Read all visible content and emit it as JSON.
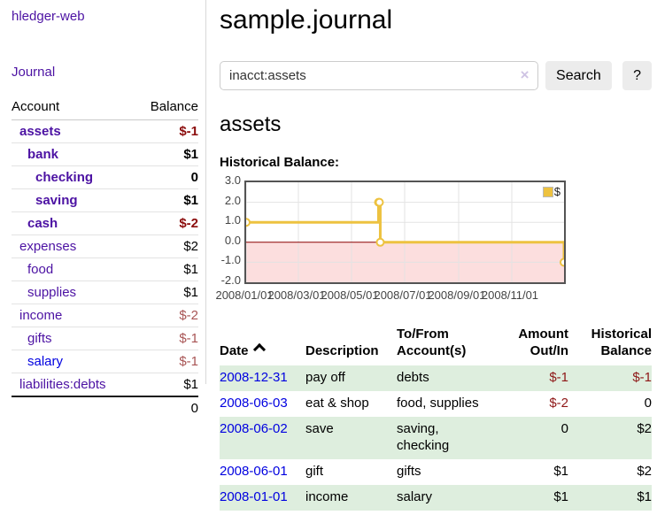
{
  "sidebar": {
    "brand": "hledger-web",
    "nav": [
      {
        "label": "Journal"
      }
    ],
    "accounts_table": {
      "headers": [
        "Account",
        "Balance"
      ],
      "rows": [
        {
          "name": "assets",
          "balance": "$-1",
          "indent": 1,
          "bold": true,
          "link_color": "purple",
          "balance_class": "neg-strong"
        },
        {
          "name": "bank",
          "balance": "$1",
          "indent": 2,
          "bold": true,
          "link_color": "purple",
          "balance_class": ""
        },
        {
          "name": "checking",
          "balance": "0",
          "indent": 3,
          "bold": true,
          "link_color": "purple",
          "balance_class": ""
        },
        {
          "name": "saving",
          "balance": "$1",
          "indent": 3,
          "bold": true,
          "link_color": "purple",
          "balance_class": ""
        },
        {
          "name": "cash",
          "balance": "$-2",
          "indent": 2,
          "bold": true,
          "link_color": "purple",
          "balance_class": "neg-strong"
        },
        {
          "name": "expenses",
          "balance": "$2",
          "indent": 1,
          "bold": false,
          "link_color": "purple",
          "balance_class": ""
        },
        {
          "name": "food",
          "balance": "$1",
          "indent": 2,
          "bold": false,
          "link_color": "purple",
          "balance_class": ""
        },
        {
          "name": "supplies",
          "balance": "$1",
          "indent": 2,
          "bold": false,
          "link_color": "purple",
          "balance_class": ""
        },
        {
          "name": "income",
          "balance": "$-2",
          "indent": 1,
          "bold": false,
          "link_color": "purple",
          "balance_class": "neg-soft"
        },
        {
          "name": "gifts",
          "balance": "$-1",
          "indent": 2,
          "bold": false,
          "link_color": "purple",
          "balance_class": "neg-soft"
        },
        {
          "name": "salary",
          "balance": "$-1",
          "indent": 2,
          "bold": false,
          "link_color": "blue",
          "balance_class": "neg-soft"
        },
        {
          "name": "liabilities:debts",
          "balance": "$1",
          "indent": 1,
          "bold": false,
          "link_color": "purple",
          "balance_class": ""
        }
      ],
      "total": "0"
    }
  },
  "header": {
    "title": "sample.journal"
  },
  "search": {
    "value": "inacct:assets",
    "clear_icon": "×",
    "button_label": "Search",
    "help_label": "?"
  },
  "account_page": {
    "title": "assets",
    "chart_label": "Historical Balance:"
  },
  "chart_data": {
    "type": "line",
    "step": true,
    "title": "Historical Balance",
    "series": [
      {
        "name": "$",
        "color": "#edc240",
        "points": [
          [
            "2008-01-01",
            1
          ],
          [
            "2008-06-01",
            2
          ],
          [
            "2008-06-02",
            2
          ],
          [
            "2008-06-03",
            0
          ],
          [
            "2008-12-31",
            -1
          ]
        ]
      }
    ],
    "x_range": [
      "2008-01-01",
      "2008-12-31"
    ],
    "ylim": [
      -2,
      3
    ],
    "y_ticks": [
      {
        "value": 3,
        "label": "3.0"
      },
      {
        "value": 2,
        "label": "2.0"
      },
      {
        "value": 1,
        "label": "1.0"
      },
      {
        "value": 0,
        "label": "0.0"
      },
      {
        "value": -1,
        "label": "-1.0"
      },
      {
        "value": -2,
        "label": "-2.0"
      }
    ],
    "x_ticks": [
      {
        "date": "2008-01-01",
        "label": "2008/01/01"
      },
      {
        "date": "2008-03-01",
        "label": "2008/03/01"
      },
      {
        "date": "2008-05-01",
        "label": "2008/05/01"
      },
      {
        "date": "2008-07-01",
        "label": "2008/07/01"
      },
      {
        "date": "2008-09-01",
        "label": "2008/09/01"
      },
      {
        "date": "2008-11-01",
        "label": "2008/11/01"
      }
    ],
    "grid": true,
    "legend": {
      "label": "$",
      "position": "top-right"
    },
    "colors": {
      "negative_fill": "#fcdede",
      "zero_line": "#8b0000",
      "grid": "#e3e3e3",
      "border": "#545454"
    }
  },
  "register": {
    "headers": {
      "date": "Date",
      "description": "Description",
      "accounts": "To/From Account(s)",
      "amount": "Amount Out/In",
      "balance": "Historical Balance"
    },
    "rows": [
      {
        "date": "2008-12-31",
        "description": "pay off",
        "accounts": "debts",
        "amount": "$-1",
        "amount_negative": true,
        "balance": "$-1",
        "balance_negative": true,
        "shaded": true
      },
      {
        "date": "2008-06-03",
        "description": "eat & shop",
        "accounts": "food, supplies",
        "amount": "$-2",
        "amount_negative": true,
        "balance": "0",
        "balance_negative": false,
        "shaded": false
      },
      {
        "date": "2008-06-02",
        "description": "save",
        "accounts": "saving, checking",
        "amount": "0",
        "amount_negative": false,
        "balance": "$2",
        "balance_negative": false,
        "shaded": true
      },
      {
        "date": "2008-06-01",
        "description": "gift",
        "accounts": "gifts",
        "amount": "$1",
        "amount_negative": false,
        "balance": "$2",
        "balance_negative": false,
        "shaded": false
      },
      {
        "date": "2008-01-01",
        "description": "income",
        "accounts": "salary",
        "amount": "$1",
        "amount_negative": false,
        "balance": "$1",
        "balance_negative": false,
        "shaded": true
      }
    ]
  }
}
